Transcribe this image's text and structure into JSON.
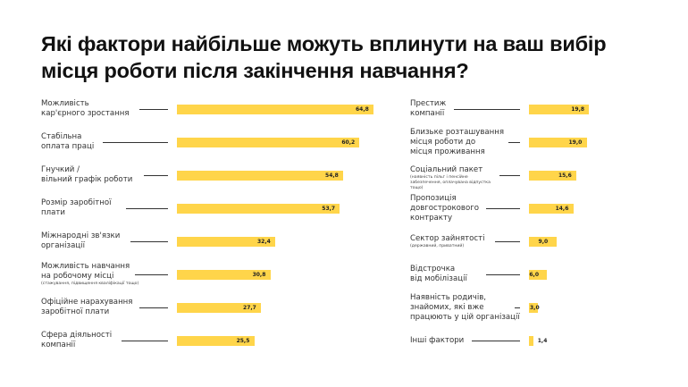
{
  "title_lines": [
    "Які фактори найбільше можуть вплинути на ваш вибір",
    "місця роботи після закінчення навчання?"
  ],
  "colors": {
    "bar": "#FFD54A",
    "text": "#222222",
    "connector": "#333333"
  },
  "chart_data": {
    "type": "bar",
    "orientation": "horizontal",
    "title": "Які фактори найбільше можуть вплинути на ваш вибір місця роботи після закінчення навчання?",
    "xlabel": "",
    "ylabel": "",
    "unit": "%",
    "columns": [
      {
        "name": "left",
        "items": [
          {
            "label": [
              "Можливість",
              "кар'єрного зростання"
            ],
            "note": "",
            "value": 64.8,
            "value_text": "64,8"
          },
          {
            "label": [
              "Стабільна",
              "оплата праці"
            ],
            "note": "",
            "value": 60.2,
            "value_text": "60,2"
          },
          {
            "label": [
              "Гнучкий /",
              "вільний графік роботи"
            ],
            "note": "",
            "value": 54.8,
            "value_text": "54,8"
          },
          {
            "label": [
              "Розмір заробітної",
              "плати"
            ],
            "note": "",
            "value": 53.7,
            "value_text": "53,7"
          },
          {
            "label": [
              "Міжнародні зв'язки",
              "організації"
            ],
            "note": "",
            "value": 32.4,
            "value_text": "32,4"
          },
          {
            "label": [
              "Можливість навчання",
              "на робочому місці"
            ],
            "note": "(стажування, підвищення кваліфікації тощо)",
            "value": 30.8,
            "value_text": "30,8"
          },
          {
            "label": [
              "Офіційне нарахування",
              "заробітної плати"
            ],
            "note": "",
            "value": 27.7,
            "value_text": "27,7"
          },
          {
            "label": [
              "Сфера діяльності",
              "компанії"
            ],
            "note": "",
            "value": 25.5,
            "value_text": "25,5"
          }
        ]
      },
      {
        "name": "right",
        "items": [
          {
            "label": [
              "Престиж",
              "компанії"
            ],
            "note": "",
            "value": 19.8,
            "value_text": "19,8"
          },
          {
            "label": [
              "Близьке розташування",
              "місця роботи до",
              "місця проживання"
            ],
            "note": "",
            "value": 19.0,
            "value_text": "19,0"
          },
          {
            "label": [
              "Соціальний пакет"
            ],
            "note": "(наявність пільг і пенсійне забезпечення, оплачувана відпустка тощо)",
            "value": 15.6,
            "value_text": "15,6"
          },
          {
            "label": [
              "Пропозиція",
              "довгострокового",
              "контракту"
            ],
            "note": "",
            "value": 14.6,
            "value_text": "14,6"
          },
          {
            "label": [
              "Сектор зайнятості"
            ],
            "note": "(державний, приватний)",
            "value": 9.0,
            "value_text": "9,0"
          },
          {
            "label": [
              "Відстрочка",
              "від мобілізації"
            ],
            "note": "",
            "value": 6.0,
            "value_text": "6,0"
          },
          {
            "label": [
              "Наявність родичів,",
              "знайомих, які вже",
              "працюють у цій організації"
            ],
            "note": "",
            "value": 3.0,
            "value_text": "3,0"
          },
          {
            "label": [
              "Інші фактори"
            ],
            "note": "",
            "value": 1.4,
            "value_text": "1,4"
          }
        ]
      }
    ]
  }
}
